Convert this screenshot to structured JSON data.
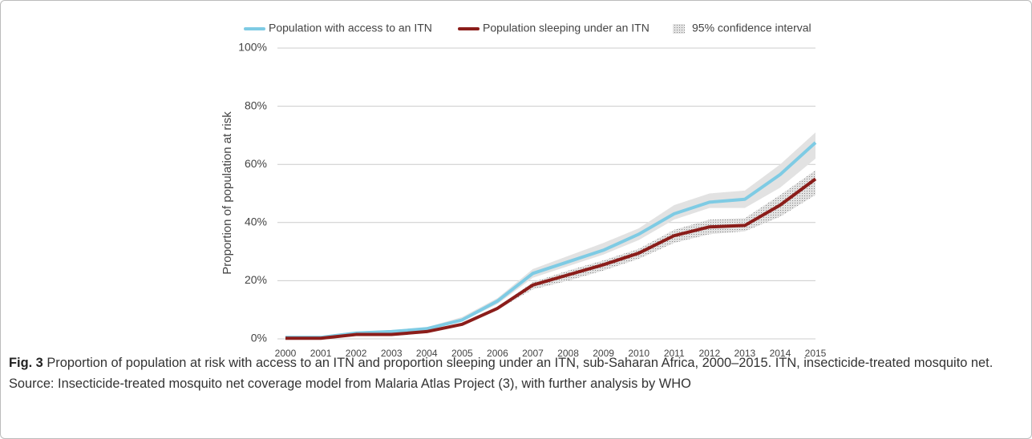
{
  "chart_data": {
    "type": "line",
    "y_label": "Proportion of population at risk",
    "categories": [
      "2000",
      "2001",
      "2002",
      "2003",
      "2004",
      "2005",
      "2006",
      "2007",
      "2008",
      "2009",
      "2010",
      "2011",
      "2012",
      "2013",
      "2014",
      "2015"
    ],
    "series": [
      {
        "name": "Population with access to an ITN",
        "color": "#7ecbe4",
        "values": [
          0.5,
          0.5,
          2,
          2.5,
          3.5,
          6.5,
          13,
          22.5,
          26.5,
          30.5,
          36,
          43,
          47,
          48,
          56.5,
          67.5
        ],
        "ci_lower": [
          0,
          0,
          1.5,
          2,
          3,
          6,
          12,
          21,
          25,
          29,
          34,
          41,
          45,
          45,
          52,
          62
        ],
        "ci_upper": [
          1,
          1,
          2.5,
          3,
          4,
          7.5,
          14,
          24,
          28.5,
          33,
          38,
          46,
          50,
          51,
          60,
          71
        ]
      },
      {
        "name": "Population sleeping under an ITN",
        "color": "#8b1d1a",
        "values": [
          0.2,
          0.2,
          1.5,
          1.5,
          2.5,
          5,
          10.5,
          18.5,
          22,
          25.5,
          29.5,
          35.5,
          38.5,
          39,
          46,
          55
        ],
        "ci_lower": [
          0,
          0,
          1,
          1,
          2,
          4.5,
          10,
          17,
          20,
          23.5,
          27.5,
          33,
          36,
          37,
          42,
          49.5
        ],
        "ci_upper": [
          0.5,
          0.5,
          2,
          2,
          3,
          5.5,
          11,
          19.5,
          23.5,
          27,
          31,
          37.5,
          41,
          41.5,
          49.5,
          58
        ]
      }
    ],
    "ci_label": "95% confidence interval",
    "ylim": [
      0,
      100
    ],
    "yticks": [
      {
        "value": 0,
        "label": "0%"
      },
      {
        "value": 20,
        "label": "20%"
      },
      {
        "value": 40,
        "label": "40%"
      },
      {
        "value": 60,
        "label": "60%"
      },
      {
        "value": 80,
        "label": "80%"
      },
      {
        "value": 100,
        "label": "100%"
      }
    ],
    "grid": true,
    "caption_label": "Fig. 3",
    "caption": "Proportion of population at risk with access to an ITN and proportion sleeping under an ITN, sub-Saharan Africa, 2000–2015. ITN, insecticide-treated mosquito net. Source: Insecticide-treated mosquito net coverage model from Malaria Atlas Project (3), with further analysis by WHO"
  }
}
